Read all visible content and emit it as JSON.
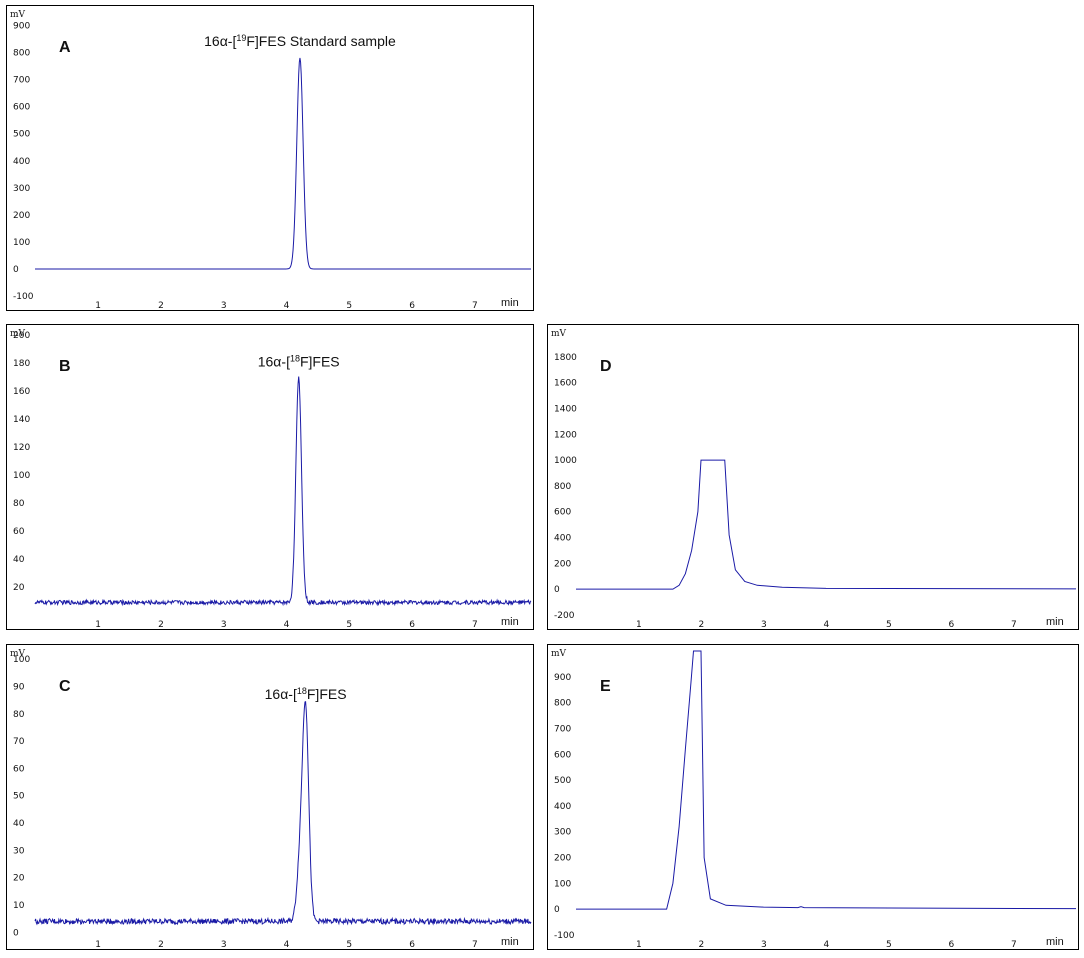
{
  "chart_data": [
    {
      "type": "line",
      "panel_label": "A",
      "annotation": {
        "prefix": "16α-[",
        "sup": "19",
        "suffix": "F]FES Standard sample"
      },
      "ylabel": "mV",
      "xlabel": "min",
      "ylim": [
        -100,
        950
      ],
      "xlim": [
        0.0,
        7.9
      ],
      "yticks": [
        -100,
        0,
        100,
        200,
        300,
        400,
        500,
        600,
        700,
        800,
        900
      ],
      "xticks": [
        1,
        2,
        3,
        4,
        5,
        6,
        7
      ],
      "baseline": 0,
      "noise": 0,
      "peaks": [
        {
          "center": 4.22,
          "height": 780,
          "width": 0.05
        }
      ],
      "color": "#1a1aa6"
    },
    {
      "type": "line",
      "panel_label": "B",
      "annotation": {
        "prefix": "16α-[",
        "sup": "18",
        "suffix": "F]FES"
      },
      "ylabel": "mV",
      "xlabel": "min",
      "ylim": [
        0,
        203
      ],
      "xlim": [
        0.0,
        7.9
      ],
      "yticks": [
        20,
        40,
        60,
        80,
        100,
        120,
        140,
        160,
        180,
        200
      ],
      "xticks": [
        1,
        2,
        3,
        4,
        5,
        6,
        7
      ],
      "baseline": 9,
      "noise": 1.5,
      "peaks": [
        {
          "center": 4.2,
          "height": 160,
          "width": 0.045
        }
      ],
      "color": "#1a1aa6"
    },
    {
      "type": "line",
      "panel_label": "C",
      "annotation": {
        "prefix": "16α-[",
        "sup": "18",
        "suffix": "F]FES"
      },
      "ylabel": "mV",
      "xlabel": "min",
      "ylim": [
        -1,
        103
      ],
      "xlim": [
        0.0,
        7.9
      ],
      "yticks": [
        0,
        10,
        20,
        30,
        40,
        50,
        60,
        70,
        80,
        90,
        100
      ],
      "xticks": [
        1,
        2,
        3,
        4,
        5,
        6,
        7
      ],
      "baseline": 4,
      "noise": 1.0,
      "peaks": [
        {
          "center": 4.31,
          "height": 77,
          "width": 0.05
        },
        {
          "center": 4.22,
          "height": 20,
          "width": 0.05
        }
      ],
      "color": "#1a1aa6"
    },
    {
      "type": "line",
      "panel_label": "D",
      "ylabel": "mV",
      "xlabel": "min",
      "ylim": [
        -200,
        2000
      ],
      "xlim": [
        0.0,
        8.0
      ],
      "yticks": [
        -200,
        0,
        200,
        400,
        600,
        800,
        1000,
        1200,
        1400,
        1600,
        1800
      ],
      "xticks": [
        1,
        2,
        3,
        4,
        5,
        6,
        7
      ],
      "saturated_max": 1000,
      "profile": [
        [
          0,
          0
        ],
        [
          1.55,
          0
        ],
        [
          1.65,
          30
        ],
        [
          1.75,
          120
        ],
        [
          1.85,
          300
        ],
        [
          1.95,
          600
        ],
        [
          2.0,
          1000
        ],
        [
          2.38,
          1000
        ],
        [
          2.45,
          420
        ],
        [
          2.55,
          150
        ],
        [
          2.7,
          60
        ],
        [
          2.9,
          30
        ],
        [
          3.3,
          15
        ],
        [
          4.0,
          6
        ],
        [
          8.0,
          2
        ]
      ],
      "color": "#1a1aa6"
    },
    {
      "type": "line",
      "panel_label": "E",
      "ylabel": "mV",
      "xlabel": "min",
      "ylim": [
        -100,
        1000
      ],
      "xlim": [
        0.0,
        8.0
      ],
      "yticks": [
        -100,
        0,
        100,
        200,
        300,
        400,
        500,
        600,
        700,
        800,
        900
      ],
      "xticks": [
        1,
        2,
        3,
        4,
        5,
        6,
        7
      ],
      "profile": [
        [
          0,
          0
        ],
        [
          1.45,
          0
        ],
        [
          1.55,
          100
        ],
        [
          1.65,
          320
        ],
        [
          1.75,
          620
        ],
        [
          1.84,
          880
        ],
        [
          1.88,
          1000
        ],
        [
          2.0,
          1000
        ],
        [
          2.05,
          200
        ],
        [
          2.15,
          40
        ],
        [
          2.4,
          15
        ],
        [
          3.0,
          8
        ],
        [
          3.55,
          6
        ],
        [
          3.6,
          10
        ],
        [
          3.65,
          6
        ],
        [
          8.0,
          2
        ]
      ],
      "color": "#1a1aa6"
    }
  ]
}
